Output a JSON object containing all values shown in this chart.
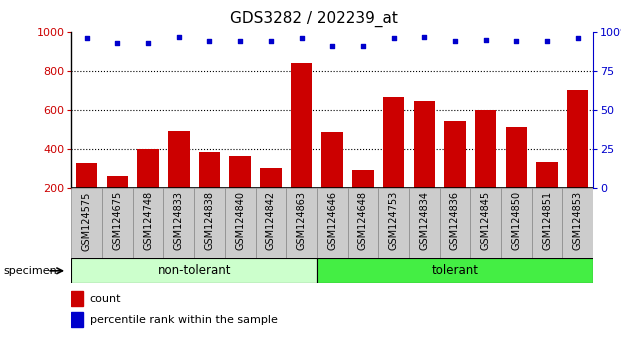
{
  "title": "GDS3282 / 202239_at",
  "categories": [
    "GSM124575",
    "GSM124675",
    "GSM124748",
    "GSM124833",
    "GSM124838",
    "GSM124840",
    "GSM124842",
    "GSM124863",
    "GSM124646",
    "GSM124648",
    "GSM124753",
    "GSM124834",
    "GSM124836",
    "GSM124845",
    "GSM124850",
    "GSM124851",
    "GSM124853"
  ],
  "counts": [
    325,
    258,
    400,
    492,
    382,
    362,
    300,
    840,
    488,
    290,
    667,
    645,
    542,
    600,
    512,
    330,
    700
  ],
  "percentile_ranks": [
    96,
    93,
    93,
    97,
    94,
    94,
    94,
    96,
    91,
    91,
    96,
    97,
    94,
    95,
    94,
    94,
    96
  ],
  "group_labels": [
    "non-tolerant",
    "tolerant"
  ],
  "group_split": 8,
  "bar_color": "#cc0000",
  "dot_color": "#0000cc",
  "non_tolerant_color": "#ccffcc",
  "tolerant_color": "#44ee44",
  "tick_bg_color": "#cccccc",
  "ylim_left": [
    200,
    1000
  ],
  "ylim_right": [
    0,
    100
  ],
  "yticks_left": [
    200,
    400,
    600,
    800,
    1000
  ],
  "yticks_right": [
    0,
    25,
    50,
    75,
    100
  ],
  "background_color": "#ffffff",
  "specimen_label": "specimen",
  "legend_count_label": "count",
  "legend_pct_label": "percentile rank within the sample",
  "title_fontsize": 11,
  "tick_fontsize": 7,
  "axis_fontsize": 8
}
